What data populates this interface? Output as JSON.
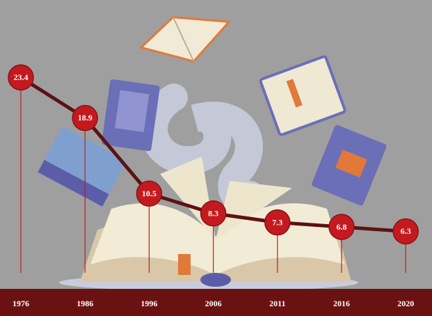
{
  "chart_data": {
    "type": "line",
    "categories": [
      "1976",
      "1986",
      "1996",
      "2006",
      "2011",
      "2016",
      "2020"
    ],
    "values": [
      23.4,
      18.9,
      10.5,
      8.3,
      7.3,
      6.8,
      6.3
    ],
    "color": "#5c1212",
    "marker_color": "#c41a1f",
    "ylim": [
      0,
      32
    ]
  }
}
